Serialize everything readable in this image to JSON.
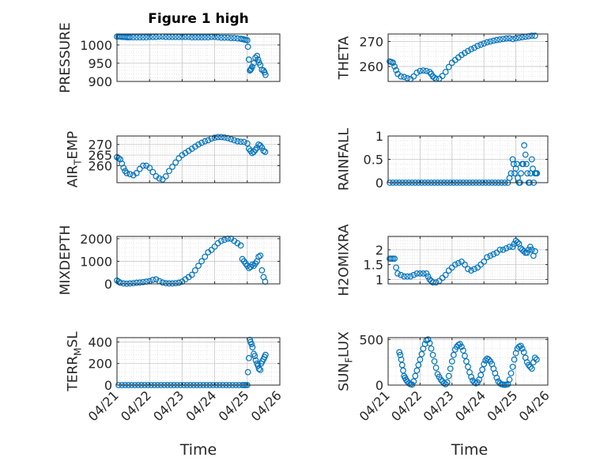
{
  "figure": {
    "title": "Figure 1 high",
    "xlabel_left": "Time",
    "xlabel_right": "Time",
    "x_tick_labels": [
      "04/21",
      "04/22",
      "04/23",
      "04/24",
      "04/25",
      "04/26"
    ]
  },
  "colors": {
    "marker": "#0072BD",
    "axis": "#262626",
    "grid": "#c8c8c8",
    "minor_grid": "#dcdcdc"
  },
  "chart_data": [
    {
      "type": "scatter",
      "ylabel": "PRESSURE",
      "xlim": [
        0,
        5
      ],
      "ylim": [
        900,
        1030
      ],
      "yticks": [
        900,
        950,
        1000
      ],
      "x_tick_labels_shown": false,
      "x": [
        0.0,
        0.05,
        0.1,
        0.15,
        0.2,
        0.25,
        0.3,
        0.35,
        0.4,
        0.5,
        0.6,
        0.7,
        0.8,
        0.9,
        1.0,
        1.1,
        1.2,
        1.3,
        1.4,
        1.5,
        1.6,
        1.7,
        1.8,
        1.9,
        2.0,
        2.1,
        2.2,
        2.3,
        2.4,
        2.5,
        2.6,
        2.7,
        2.8,
        2.9,
        3.0,
        3.1,
        3.2,
        3.3,
        3.4,
        3.5,
        3.6,
        3.7,
        3.8,
        3.85,
        3.9,
        3.95,
        4.0,
        4.02,
        4.05,
        4.08,
        4.1,
        4.12,
        4.15,
        4.2,
        4.25,
        4.3,
        4.33,
        4.36,
        4.4,
        4.45,
        4.5,
        4.53,
        4.56
      ],
      "y": [
        1023,
        1023,
        1023,
        1022,
        1022,
        1022,
        1021,
        1021,
        1021,
        1021,
        1021,
        1021,
        1021,
        1021,
        1022,
        1022,
        1022,
        1023,
        1023,
        1022,
        1022,
        1022,
        1022,
        1022,
        1022,
        1022,
        1022,
        1021,
        1021,
        1021,
        1021,
        1021,
        1021,
        1022,
        1022,
        1021,
        1020,
        1020,
        1020,
        1019,
        1019,
        1018,
        1017,
        1016,
        1015,
        1014,
        1013,
        995,
        960,
        930,
        932,
        935,
        940,
        950,
        965,
        970,
        960,
        952,
        945,
        932,
        930,
        925,
        918
      ]
    },
    {
      "type": "scatter",
      "ylabel": "THETA",
      "xlim": [
        0,
        5
      ],
      "ylim": [
        254,
        273
      ],
      "yticks": [
        260,
        270
      ],
      "x_tick_labels_shown": false,
      "x": [
        0.05,
        0.1,
        0.15,
        0.2,
        0.25,
        0.3,
        0.4,
        0.5,
        0.6,
        0.7,
        0.8,
        0.9,
        1.0,
        1.1,
        1.2,
        1.3,
        1.35,
        1.4,
        1.45,
        1.5,
        1.6,
        1.7,
        1.8,
        1.9,
        2.0,
        2.1,
        2.2,
        2.3,
        2.4,
        2.5,
        2.6,
        2.7,
        2.8,
        2.9,
        3.0,
        3.1,
        3.2,
        3.3,
        3.4,
        3.5,
        3.6,
        3.7,
        3.8,
        3.9,
        4.0,
        4.1,
        4.2,
        4.3,
        4.4,
        4.5,
        4.6
      ],
      "y": [
        262,
        261.8,
        261.5,
        260,
        258.5,
        257,
        256,
        255.8,
        255.3,
        255,
        256,
        257.5,
        258.2,
        258.4,
        258.2,
        257.8,
        257,
        256,
        255.5,
        255,
        255.1,
        256.2,
        257.8,
        259.8,
        261.5,
        262.6,
        263.6,
        264.6,
        265.4,
        266.2,
        266.9,
        267.5,
        268.2,
        268.7,
        269.2,
        269.7,
        270.0,
        270.3,
        270.6,
        270.8,
        271.0,
        271.2,
        271.3,
        271.0,
        271.3,
        271.5,
        271.7,
        271.9,
        272.1,
        272.3,
        272.3
      ]
    },
    {
      "type": "scatter",
      "ylabel": "AIR_TEMP",
      "ylabel_display": {
        "base": "AIR",
        "sub": "T",
        "rest": "EMP"
      },
      "xlim": [
        0,
        5
      ],
      "ylim": [
        252,
        274
      ],
      "yticks": [
        260,
        265,
        270
      ],
      "x_tick_labels_shown": false,
      "x": [
        0.0,
        0.05,
        0.1,
        0.15,
        0.2,
        0.25,
        0.3,
        0.4,
        0.5,
        0.6,
        0.7,
        0.8,
        0.9,
        1.0,
        1.1,
        1.2,
        1.3,
        1.4,
        1.5,
        1.6,
        1.7,
        1.8,
        1.9,
        2.0,
        2.1,
        2.2,
        2.3,
        2.4,
        2.5,
        2.6,
        2.7,
        2.8,
        2.9,
        3.0,
        3.1,
        3.2,
        3.3,
        3.4,
        3.5,
        3.6,
        3.7,
        3.8,
        3.9,
        4.0,
        4.05,
        4.1,
        4.15,
        4.2,
        4.25,
        4.3,
        4.35,
        4.4,
        4.45,
        4.5,
        4.55
      ],
      "y": [
        264,
        263.5,
        263,
        261,
        259,
        257.5,
        256.5,
        256,
        255.5,
        256.5,
        258.5,
        260,
        260,
        259,
        257,
        255,
        254,
        253.5,
        255,
        257.5,
        259.5,
        261.5,
        263.5,
        265,
        266,
        267,
        268,
        269,
        270,
        270.8,
        271.5,
        272,
        272.8,
        273.2,
        273.5,
        273.5,
        273.3,
        273.0,
        272.5,
        272.0,
        271.5,
        271.3,
        271.2,
        270.5,
        268,
        267,
        266,
        266.5,
        267.5,
        268.5,
        270,
        269.5,
        268.5,
        267,
        266.5
      ]
    },
    {
      "type": "scatter",
      "ylabel": "RAINFALL",
      "xlim": [
        0,
        5
      ],
      "ylim": [
        0,
        1
      ],
      "yticks": [
        0,
        0.5,
        1
      ],
      "x_tick_labels_shown": false,
      "x": [
        0.05,
        0.15,
        0.25,
        0.35,
        0.45,
        0.55,
        0.65,
        0.75,
        0.85,
        0.95,
        1.05,
        1.15,
        1.25,
        1.35,
        1.45,
        1.55,
        1.65,
        1.75,
        1.85,
        1.95,
        2.05,
        2.15,
        2.25,
        2.35,
        2.45,
        2.55,
        2.65,
        2.75,
        2.85,
        2.95,
        3.05,
        3.15,
        3.25,
        3.35,
        3.45,
        3.55,
        3.65,
        3.75,
        3.8,
        3.85,
        3.9,
        3.93,
        3.96,
        4.0,
        4.03,
        4.06,
        4.1,
        4.13,
        4.16,
        4.2,
        4.23,
        4.26,
        4.3,
        4.33,
        4.36,
        4.4,
        4.43,
        4.46,
        4.5,
        4.53,
        4.56,
        4.6,
        4.63,
        4.66
      ],
      "y": [
        0,
        0,
        0,
        0,
        0,
        0,
        0,
        0,
        0,
        0,
        0,
        0,
        0,
        0,
        0,
        0,
        0,
        0,
        0,
        0,
        0,
        0,
        0,
        0,
        0,
        0,
        0,
        0,
        0,
        0,
        0,
        0,
        0,
        0,
        0,
        0,
        0,
        0,
        0.1,
        0.2,
        0.5,
        0.4,
        0.2,
        0.3,
        0.4,
        0.1,
        0,
        0,
        0.2,
        0.4,
        0.4,
        0.8,
        0.6,
        0.4,
        0.2,
        0,
        0,
        0.2,
        0.5,
        0.3,
        0,
        0.2,
        0.2,
        0.2
      ]
    },
    {
      "type": "scatter",
      "ylabel": "MIXDEPTH",
      "xlim": [
        0,
        5
      ],
      "ylim": [
        0,
        2100
      ],
      "yticks": [
        0,
        1000,
        2000
      ],
      "x_tick_labels_shown": false,
      "x": [
        0.0,
        0.05,
        0.1,
        0.2,
        0.3,
        0.4,
        0.5,
        0.6,
        0.7,
        0.8,
        0.9,
        1.0,
        1.1,
        1.2,
        1.3,
        1.4,
        1.5,
        1.6,
        1.7,
        1.8,
        1.9,
        2.0,
        2.1,
        2.2,
        2.3,
        2.4,
        2.5,
        2.6,
        2.7,
        2.8,
        2.9,
        3.0,
        3.1,
        3.2,
        3.3,
        3.4,
        3.5,
        3.6,
        3.7,
        3.8,
        3.85,
        3.9,
        3.95,
        4.0,
        4.05,
        4.1,
        4.15,
        4.2,
        4.25,
        4.3,
        4.35,
        4.4,
        4.45,
        4.5,
        4.55
      ],
      "y": [
        150,
        100,
        50,
        20,
        10,
        20,
        30,
        50,
        60,
        80,
        100,
        120,
        180,
        200,
        120,
        60,
        30,
        20,
        20,
        30,
        50,
        100,
        200,
        300,
        400,
        600,
        800,
        1000,
        1200,
        1400,
        1500,
        1650,
        1800,
        1900,
        1950,
        2000,
        2000,
        1900,
        1800,
        1700,
        1100,
        1000,
        900,
        800,
        700,
        750,
        850,
        800,
        900,
        1000,
        1200,
        1250,
        600,
        300,
        100
      ]
    },
    {
      "type": "scatter",
      "ylabel": "H2OMIXRA",
      "xlim": [
        0,
        5
      ],
      "ylim": [
        0.85,
        2.45
      ],
      "yticks": [
        1,
        1.5,
        2
      ],
      "x_tick_labels_shown": false,
      "x": [
        0.05,
        0.1,
        0.15,
        0.2,
        0.25,
        0.3,
        0.4,
        0.5,
        0.6,
        0.7,
        0.8,
        0.9,
        1.0,
        1.1,
        1.2,
        1.25,
        1.3,
        1.35,
        1.4,
        1.5,
        1.6,
        1.7,
        1.8,
        1.9,
        2.0,
        2.1,
        2.2,
        2.3,
        2.4,
        2.5,
        2.6,
        2.7,
        2.8,
        2.9,
        3.0,
        3.1,
        3.2,
        3.3,
        3.4,
        3.5,
        3.6,
        3.7,
        3.8,
        3.9,
        3.95,
        4.0,
        4.05,
        4.1,
        4.15,
        4.2,
        4.25,
        4.3,
        4.35,
        4.4,
        4.45,
        4.5,
        4.55,
        4.6
      ],
      "y": [
        1.7,
        1.7,
        1.7,
        1.7,
        1.4,
        1.2,
        1.15,
        1.1,
        1.1,
        1.1,
        1.15,
        1.2,
        1.2,
        1.2,
        1.2,
        1.1,
        1.0,
        0.95,
        0.9,
        0.9,
        0.95,
        1.05,
        1.15,
        1.3,
        1.4,
        1.5,
        1.55,
        1.6,
        1.5,
        1.35,
        1.3,
        1.35,
        1.4,
        1.5,
        1.6,
        1.75,
        1.8,
        1.85,
        1.9,
        2.0,
        2.0,
        2.05,
        2.1,
        2.1,
        2.2,
        2.3,
        2.25,
        2.2,
        2.05,
        2.0,
        1.95,
        1.9,
        1.9,
        2.0,
        2.1,
        2.0,
        1.8,
        1.95
      ]
    },
    {
      "type": "scatter",
      "ylabel": "TERR_MSL",
      "ylabel_display": {
        "base": "TERR",
        "sub": "M",
        "rest": "SL"
      },
      "xlim": [
        0,
        5
      ],
      "ylim": [
        0,
        440
      ],
      "yticks": [
        0,
        200,
        400
      ],
      "x_tick_labels_shown": true,
      "x": [
        0.05,
        0.15,
        0.25,
        0.35,
        0.45,
        0.55,
        0.65,
        0.75,
        0.85,
        0.95,
        1.05,
        1.15,
        1.25,
        1.35,
        1.45,
        1.55,
        1.65,
        1.75,
        1.85,
        1.95,
        2.05,
        2.15,
        2.25,
        2.35,
        2.45,
        2.55,
        2.65,
        2.75,
        2.85,
        2.95,
        3.05,
        3.15,
        3.25,
        3.35,
        3.45,
        3.55,
        3.65,
        3.75,
        3.85,
        3.9,
        3.95,
        4.0,
        4.02,
        4.05,
        4.08,
        4.1,
        4.13,
        4.16,
        4.2,
        4.23,
        4.26,
        4.3,
        4.33,
        4.36,
        4.4,
        4.43,
        4.46,
        4.5,
        4.53,
        4.56
      ],
      "y": [
        0,
        0,
        0,
        0,
        0,
        0,
        0,
        0,
        0,
        0,
        0,
        0,
        0,
        0,
        0,
        0,
        0,
        0,
        0,
        0,
        0,
        0,
        0,
        0,
        0,
        0,
        0,
        0,
        0,
        0,
        0,
        0,
        0,
        0,
        0,
        0,
        0,
        0,
        0,
        0,
        0,
        0,
        120,
        250,
        420,
        400,
        380,
        350,
        290,
        270,
        230,
        200,
        180,
        150,
        140,
        200,
        220,
        240,
        260,
        280
      ]
    },
    {
      "type": "scatter",
      "ylabel": "SUN_FLUX",
      "ylabel_display": {
        "base": "SUN",
        "sub": "F",
        "rest": "LUX"
      },
      "xlim": [
        0,
        5
      ],
      "ylim": [
        0,
        520
      ],
      "yticks": [
        0,
        500
      ],
      "x_tick_labels_shown": true,
      "x": [
        0.35,
        0.38,
        0.41,
        0.44,
        0.47,
        0.5,
        0.53,
        0.56,
        0.6,
        0.65,
        0.7,
        0.75,
        0.8,
        0.85,
        0.9,
        0.95,
        1.0,
        1.05,
        1.1,
        1.15,
        1.2,
        1.25,
        1.3,
        1.35,
        1.4,
        1.45,
        1.5,
        1.55,
        1.6,
        1.65,
        1.7,
        1.75,
        1.8,
        1.85,
        1.9,
        1.95,
        2.0,
        2.05,
        2.1,
        2.15,
        2.2,
        2.25,
        2.3,
        2.35,
        2.4,
        2.45,
        2.5,
        2.55,
        2.6,
        2.65,
        2.7,
        2.75,
        2.8,
        2.85,
        2.9,
        2.95,
        3.0,
        3.05,
        3.1,
        3.15,
        3.2,
        3.25,
        3.3,
        3.35,
        3.4,
        3.45,
        3.5,
        3.55,
        3.6,
        3.65,
        3.7,
        3.75,
        3.8,
        3.85,
        3.9,
        3.95,
        4.0,
        4.05,
        4.1,
        4.15,
        4.2,
        4.25,
        4.3,
        4.35,
        4.4,
        4.45,
        4.5,
        4.55,
        4.6,
        4.65
      ],
      "y": [
        360,
        330,
        280,
        220,
        160,
        100,
        80,
        60,
        40,
        20,
        10,
        5,
        40,
        100,
        160,
        220,
        280,
        340,
        400,
        450,
        490,
        500,
        460,
        400,
        330,
        260,
        190,
        120,
        90,
        60,
        40,
        20,
        10,
        30,
        100,
        180,
        260,
        330,
        390,
        420,
        440,
        450,
        420,
        380,
        320,
        260,
        200,
        140,
        90,
        50,
        30,
        20,
        30,
        60,
        110,
        170,
        230,
        270,
        290,
        280,
        260,
        230,
        180,
        130,
        80,
        40,
        20,
        10,
        5,
        3,
        5,
        10,
        60,
        130,
        200,
        280,
        350,
        400,
        420,
        430,
        400,
        360,
        300,
        250,
        220,
        200,
        180,
        250,
        300,
        280
      ]
    }
  ]
}
